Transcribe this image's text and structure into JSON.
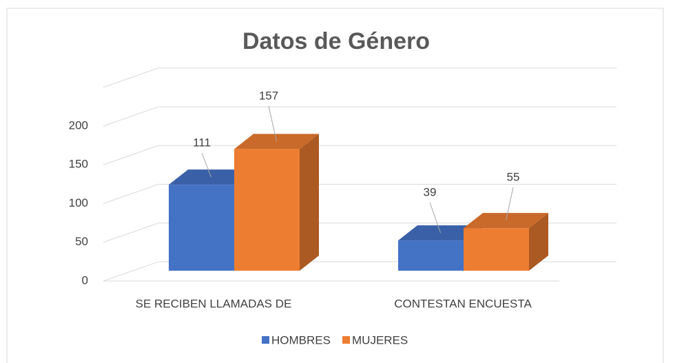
{
  "chart_data": {
    "type": "bar3d",
    "title": "Datos de Género",
    "categories": [
      "SE RECIBEN LLAMADAS DE",
      "CONTESTAN ENCUESTA"
    ],
    "series": [
      {
        "name": "HOMBRES",
        "color": "#4472c4",
        "values": [
          111,
          39
        ]
      },
      {
        "name": "MUJERES",
        "color": "#ed7d31",
        "values": [
          157,
          55
        ]
      }
    ],
    "ylim": [
      0,
      250
    ],
    "yticks": [
      0,
      50,
      100,
      150,
      200
    ],
    "grid": true,
    "legend": "bottom"
  }
}
